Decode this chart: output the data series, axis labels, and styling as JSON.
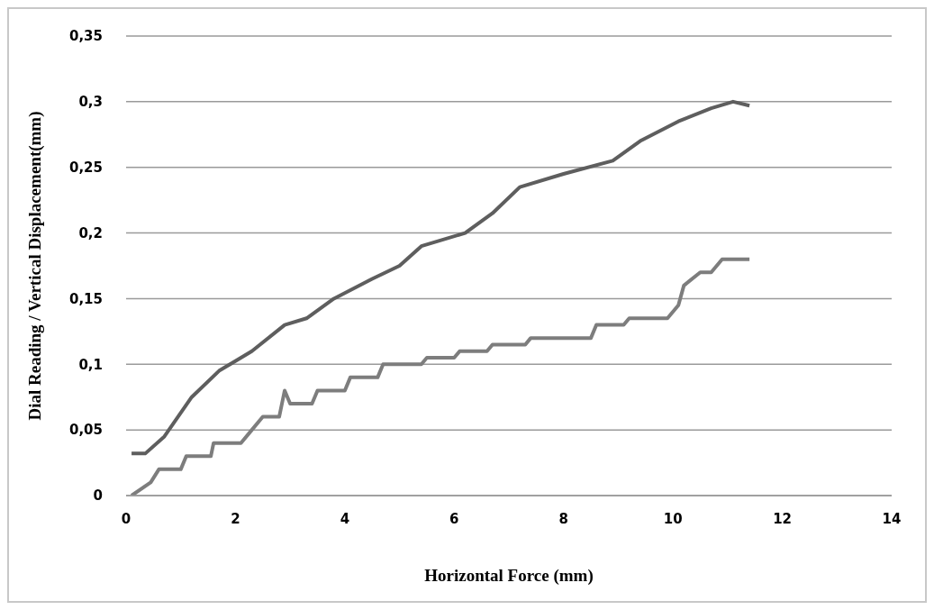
{
  "chart_data": {
    "type": "line",
    "xlabel": "Horizontal Force (mm)",
    "ylabel": "Dial Reading / Vertical Displacement(mm)",
    "xlim": [
      0,
      14
    ],
    "xticks": [
      0,
      2,
      4,
      6,
      8,
      10,
      12,
      14
    ],
    "ylim": [
      0,
      0.35
    ],
    "yticks": [
      {
        "value": 0,
        "label": "0"
      },
      {
        "value": 0.05,
        "label": "0,05"
      },
      {
        "value": 0.1,
        "label": "0,1"
      },
      {
        "value": 0.15,
        "label": "0,15"
      },
      {
        "value": 0.2,
        "label": "0,2"
      },
      {
        "value": 0.25,
        "label": "0,25"
      },
      {
        "value": 0.3,
        "label": "0,3"
      },
      {
        "value": 0.35,
        "label": "0,35"
      }
    ],
    "grid": "y",
    "legend": false,
    "marker": "none",
    "line_style": "solid",
    "series": [
      {
        "color": "#5e5e5e",
        "x": [
          0.1,
          0.35,
          0.7,
          1.2,
          1.7,
          2.3,
          2.9,
          3.3,
          3.8,
          4.5,
          5.0,
          5.4,
          6.2,
          6.7,
          7.2,
          8.0,
          8.9,
          9.4,
          10.1,
          10.7,
          11.1,
          11.4
        ],
        "values": [
          0.032,
          0.032,
          0.045,
          0.075,
          0.095,
          0.11,
          0.13,
          0.135,
          0.15,
          0.165,
          0.175,
          0.19,
          0.2,
          0.215,
          0.235,
          0.245,
          0.255,
          0.27,
          0.285,
          0.295,
          0.3,
          0.297
        ]
      },
      {
        "color": "#7d7d7d",
        "x": [
          0.1,
          0.45,
          0.6,
          1.0,
          1.1,
          1.55,
          1.6,
          2.1,
          2.3,
          2.5,
          2.8,
          2.9,
          3.0,
          3.4,
          3.5,
          4.0,
          4.1,
          4.6,
          4.7,
          5.4,
          5.5,
          6.0,
          6.1,
          6.6,
          6.7,
          7.3,
          7.4,
          8.5,
          8.6,
          9.1,
          9.2,
          9.9,
          10.1,
          10.2,
          10.5,
          10.7,
          10.9,
          11.4
        ],
        "values": [
          0,
          0.01,
          0.02,
          0.02,
          0.03,
          0.03,
          0.04,
          0.04,
          0.05,
          0.06,
          0.06,
          0.08,
          0.07,
          0.07,
          0.08,
          0.08,
          0.09,
          0.09,
          0.1,
          0.1,
          0.105,
          0.105,
          0.11,
          0.11,
          0.115,
          0.115,
          0.12,
          0.12,
          0.13,
          0.13,
          0.135,
          0.135,
          0.145,
          0.16,
          0.17,
          0.17,
          0.18,
          0.18
        ]
      }
    ]
  }
}
